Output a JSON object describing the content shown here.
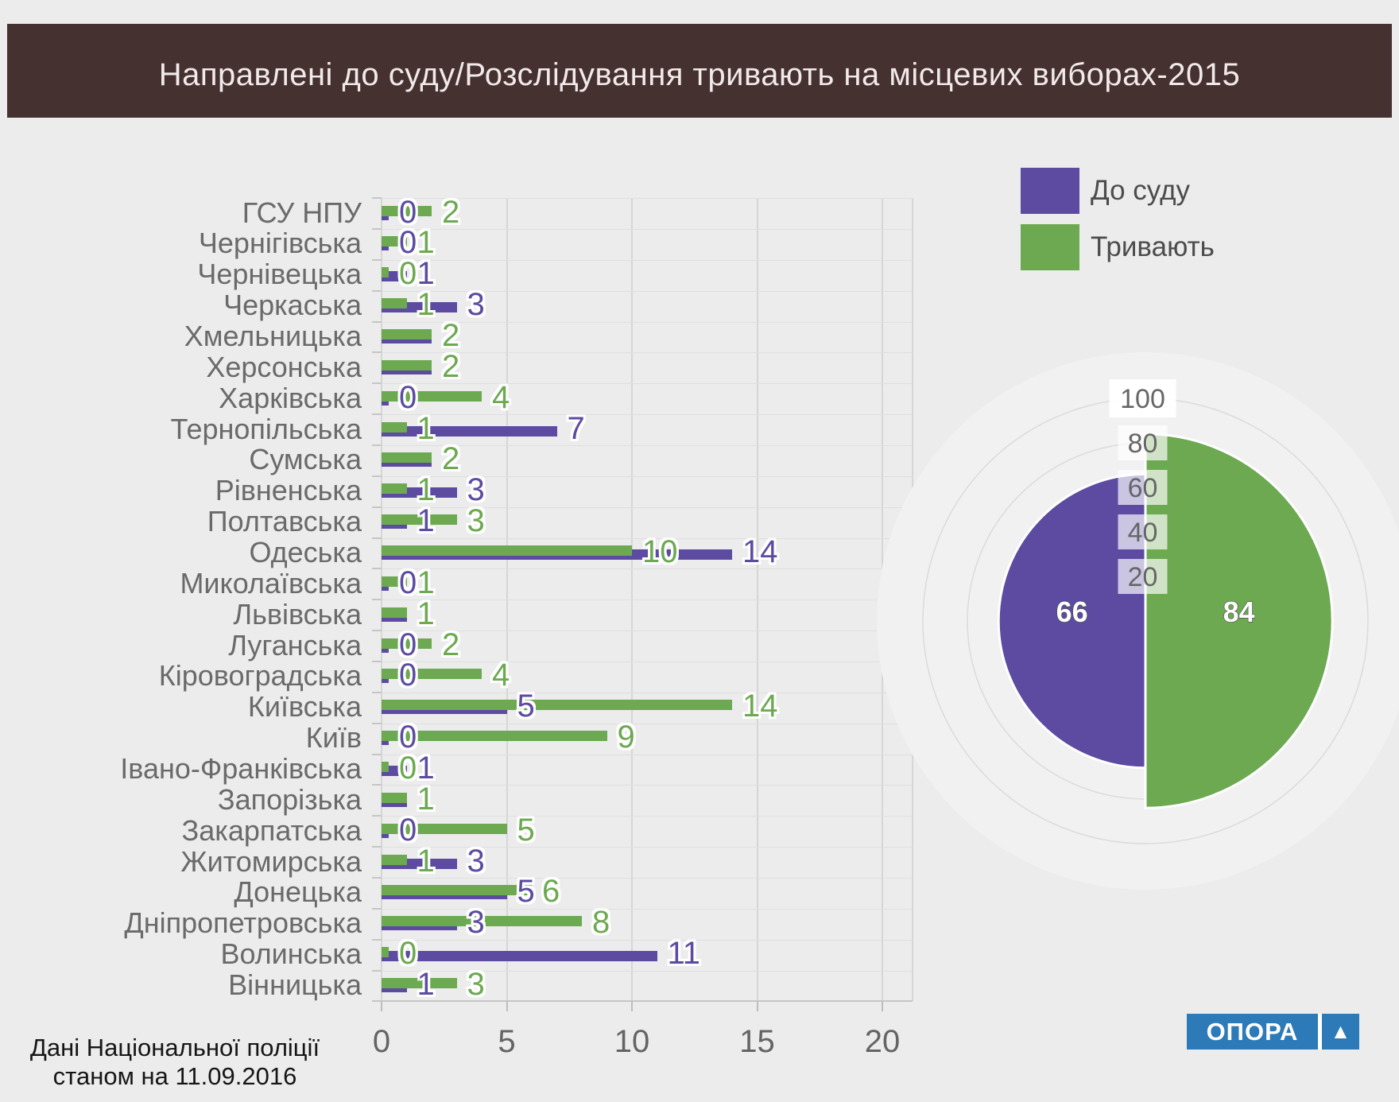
{
  "title": "Направлені до суду/Розслідування тривають на місцевих виборах-2015",
  "colors": {
    "do_sudu": "#5C4BA1",
    "tryvayut": "#6CA951",
    "header_bg": "#453130",
    "page_bg": "#ECECEC",
    "logo_blue": "#2D7AB8"
  },
  "legend": [
    {
      "label": "До суду",
      "color": "#5C4BA1"
    },
    {
      "label": "Тривають",
      "color": "#6CA951"
    }
  ],
  "footer": {
    "line1": "Дані Національної поліції",
    "line2": "станом на 11.09.2016"
  },
  "logo": {
    "text": "ОПОРА",
    "triangle": "▲"
  },
  "chart_data": [
    {
      "type": "bar",
      "orientation": "horizontal",
      "title": "Направлені до суду/Розслідування тривають на місцевих виборах-2015",
      "categories": [
        "ГСУ НПУ",
        "Чернігівська",
        "Чернівецька",
        "Черкаська",
        "Хмельницька",
        "Херсонська",
        "Харківська",
        "Тернопільська",
        "Сумська",
        "Рівненська",
        "Полтавська",
        "Одеська",
        "Миколаївська",
        "Львівська",
        "Луганська",
        "Кіровоградська",
        "Київська",
        "Київ",
        "Івано-Франківська",
        "Запорізька",
        "Закарпатська",
        "Житомирська",
        "Донецька",
        "Дніпропетровська",
        "Волинська",
        "Вінницька"
      ],
      "series": [
        {
          "name": "До суду",
          "color": "#5C4BA1",
          "values": [
            0,
            0,
            1,
            3,
            2,
            2,
            0,
            7,
            2,
            3,
            1,
            14,
            0,
            1,
            0,
            0,
            5,
            0,
            1,
            1,
            0,
            3,
            5,
            3,
            11,
            1
          ]
        },
        {
          "name": "Тривають",
          "color": "#6CA951",
          "values": [
            2,
            1,
            0,
            1,
            2,
            2,
            4,
            1,
            2,
            1,
            3,
            10,
            1,
            1,
            2,
            4,
            14,
            9,
            0,
            1,
            5,
            1,
            6,
            8,
            0,
            3
          ]
        }
      ],
      "x_ticks": [
        0,
        5,
        10,
        15,
        20
      ],
      "xlim": [
        0,
        21.2
      ],
      "grid": true,
      "legend_position": "top-right"
    },
    {
      "type": "pie",
      "variant": "equal-angle-variable-radius",
      "slices": [
        {
          "name": "До суду",
          "value": 66,
          "color": "#5C4BA1",
          "half": "left"
        },
        {
          "name": "Тривають",
          "value": 84,
          "color": "#6CA951",
          "half": "right"
        }
      ],
      "radial_ticks": [
        20,
        40,
        60,
        80,
        100
      ],
      "rmax": 100
    }
  ]
}
